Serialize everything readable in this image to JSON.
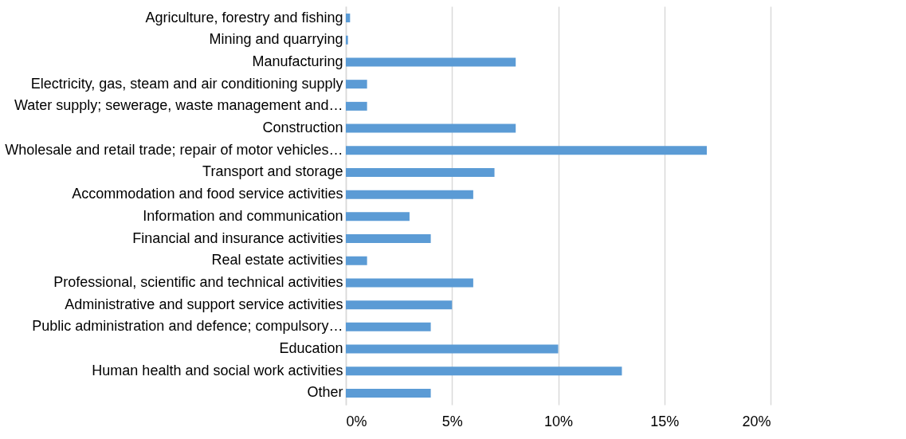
{
  "chart_data": {
    "type": "bar",
    "orientation": "horizontal",
    "categories": [
      "Agriculture, forestry and fishing",
      "Mining and quarrying",
      "Manufacturing",
      "Electricity, gas, steam and air conditioning supply",
      "Water supply; sewerage, waste management and…",
      "Construction",
      "Wholesale and retail trade; repair of motor vehicles…",
      "Transport and storage",
      "Accommodation and food service activities",
      "Information and communication",
      "Financial and insurance activities",
      "Real estate activities",
      "Professional, scientific and technical activities",
      "Administrative and support service activities",
      "Public administration and defence; compulsory…",
      "Education",
      "Human health and social work activities",
      "Other"
    ],
    "values": [
      0.2,
      0.1,
      8,
      1,
      1,
      8,
      17,
      7,
      6,
      3,
      4,
      1,
      6,
      5,
      4,
      10,
      13,
      4
    ],
    "color": "#5b9bd5",
    "xlim": [
      0,
      20
    ],
    "xticks": [
      {
        "value": 0,
        "label": "0%"
      },
      {
        "value": 5,
        "label": "5%"
      },
      {
        "value": 10,
        "label": "10%"
      },
      {
        "value": 15,
        "label": "15%"
      },
      {
        "value": 20,
        "label": "20%"
      }
    ],
    "grid": "x"
  }
}
